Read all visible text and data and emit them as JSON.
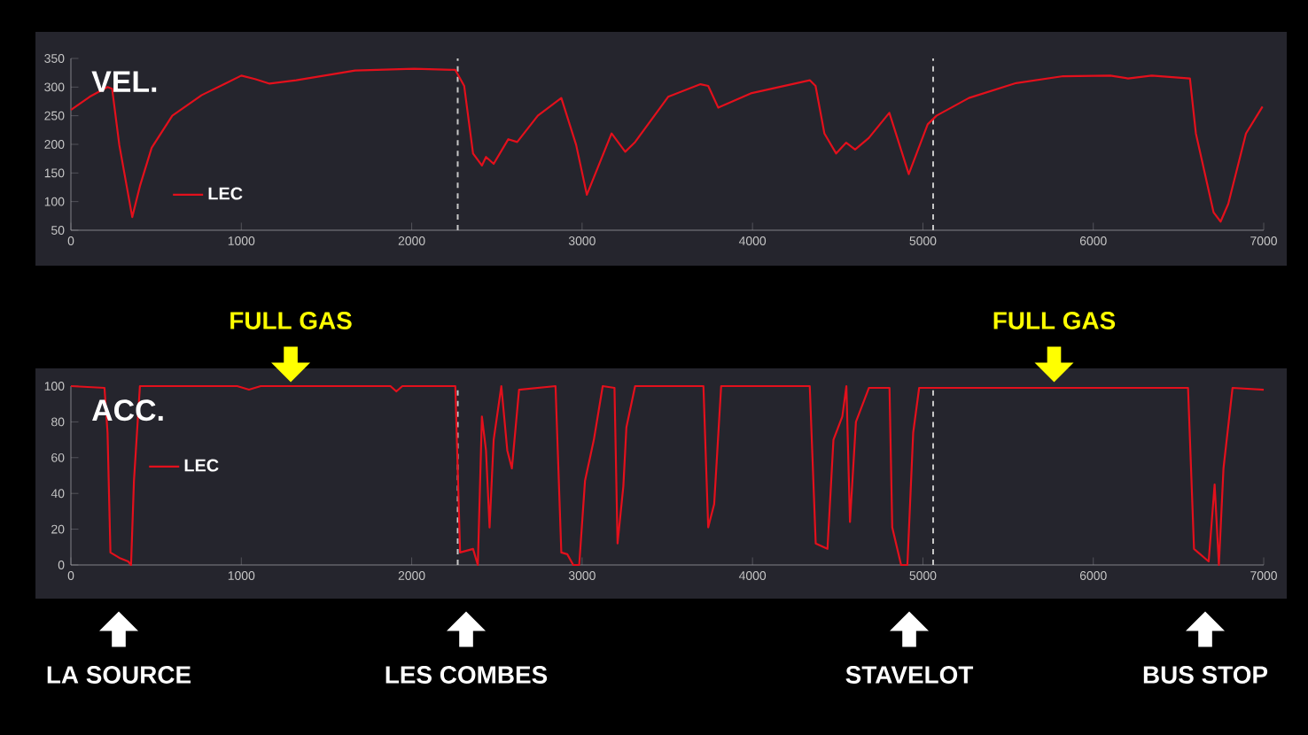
{
  "chart_data": [
    {
      "type": "line",
      "title": "VEL.",
      "xlim": [
        0,
        7000
      ],
      "ylim": [
        50,
        350
      ],
      "xticks": [
        0,
        1000,
        2000,
        3000,
        4000,
        5000,
        6000,
        7000
      ],
      "yticks": [
        50,
        100,
        150,
        200,
        250,
        300,
        350
      ],
      "legend": "bottom left",
      "ref_lines": [
        {
          "axis": "x",
          "value": 2270,
          "color": "#c8c8c8",
          "line_style": "dashed"
        },
        {
          "axis": "x",
          "value": 5060,
          "color": "#c8c8c8",
          "line_style": "dashed"
        }
      ],
      "x": [
        0,
        110,
        215,
        242,
        284,
        360,
        405,
        474,
        595,
        768,
        1000,
        1080,
        1166,
        1322,
        1668,
        2014,
        2256,
        2308,
        2360,
        2412,
        2436,
        2481,
        2567,
        2619,
        2740,
        2878,
        2965,
        3028,
        3173,
        3253,
        3311,
        3505,
        3695,
        3740,
        3799,
        3990,
        4336,
        4370,
        4422,
        4491,
        4550,
        4602,
        4682,
        4803,
        4917,
        5028,
        5080,
        5270,
        5547,
        5823,
        6100,
        6204,
        6343,
        6567,
        6602,
        6706,
        6747,
        6792,
        6896,
        6993
      ],
      "series": [
        {
          "name": "LEC",
          "color": "#e3101c",
          "values": [
            260,
            283,
            300,
            297,
            199,
            73,
            127,
            194,
            250,
            286,
            320,
            314,
            306,
            312,
            329,
            332,
            330,
            302,
            184,
            163,
            178,
            166,
            209,
            204,
            250,
            281,
            199,
            112,
            219,
            187,
            204,
            283,
            305,
            302,
            264,
            289,
            312,
            302,
            219,
            184,
            203,
            191,
            211,
            255,
            148,
            235,
            250,
            281,
            307,
            319,
            320,
            315,
            320,
            315,
            219,
            81,
            65,
            96,
            219,
            266
          ]
        }
      ]
    },
    {
      "type": "line",
      "title": "ACC.",
      "xlim": [
        0,
        7000
      ],
      "ylim": [
        0,
        100
      ],
      "xticks": [
        0,
        1000,
        2000,
        3000,
        4000,
        5000,
        6000,
        7000
      ],
      "yticks": [
        0,
        20,
        40,
        60,
        80,
        100
      ],
      "legend": "left",
      "ref_lines": [
        {
          "axis": "x",
          "value": 2270,
          "color": "#c8c8c8",
          "line_style": "dashed"
        },
        {
          "axis": "x",
          "value": 5060,
          "color": "#c8c8c8",
          "line_style": "dashed"
        }
      ],
      "annotations": [
        {
          "text": "FULL GAS",
          "x": 1290,
          "y": 100
        },
        {
          "text": "FULL GAS",
          "x": 5770,
          "y": 100
        },
        "LA SOURCE",
        "LES COMBES",
        "STAVELOT",
        "BUS STOP"
      ],
      "x": [
        0,
        197,
        215,
        232,
        284,
        336,
        353,
        370,
        405,
        976,
        1045,
        1114,
        1875,
        1910,
        1945,
        2256,
        2284,
        2360,
        2388,
        2412,
        2436,
        2457,
        2481,
        2526,
        2561,
        2588,
        2630,
        2844,
        2878,
        2913,
        2948,
        2983,
        3017,
        3069,
        3121,
        3190,
        3208,
        3242,
        3260,
        3311,
        3712,
        3740,
        3775,
        3816,
        4336,
        4371,
        4440,
        4475,
        4527,
        4551,
        4572,
        4607,
        4683,
        4804,
        4820,
        4872,
        4909,
        4943,
        4978,
        6556,
        6591,
        6677,
        6712,
        6737,
        6764,
        6817,
        7000
      ],
      "series": [
        {
          "name": "LEC",
          "color": "#e3101c",
          "values": [
            100,
            99,
            74,
            7,
            4,
            2,
            0,
            47,
            100,
            100,
            98,
            100,
            100,
            97,
            100,
            100,
            7,
            9,
            0,
            83,
            64,
            21,
            70,
            100,
            64,
            54,
            98,
            100,
            7,
            6,
            0,
            0,
            47,
            70,
            100,
            99,
            12,
            44,
            77,
            100,
            100,
            21,
            34,
            100,
            100,
            12,
            9,
            70,
            83,
            100,
            24,
            80,
            99,
            99,
            21,
            0,
            0,
            74,
            99,
            99,
            9,
            2,
            45,
            0,
            54,
            99,
            98
          ]
        }
      ]
    }
  ]
}
